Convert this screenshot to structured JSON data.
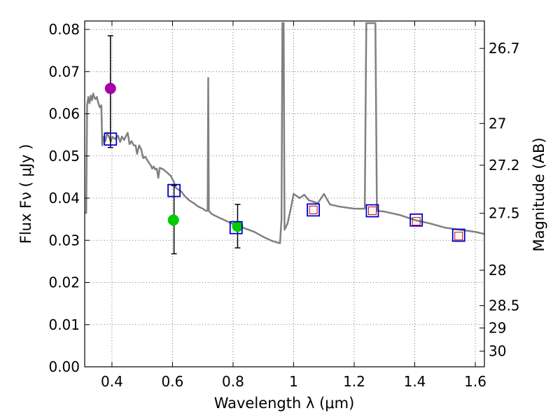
{
  "chart_data": {
    "type": "line",
    "xlabel": "Wavelength  λ (μm)",
    "ylabel": "Flux  Fν  ( μJy )",
    "y2label": "Magnitude (AB)",
    "xlim": [
      0.31,
      1.63
    ],
    "ylim": [
      0.0,
      0.082
    ],
    "grid": true,
    "grid_style": "dotted",
    "x_ticks": [
      0.4,
      0.6,
      0.8,
      1.0,
      1.2,
      1.4,
      1.6
    ],
    "x_tick_labels": [
      "0.4",
      "0.6",
      "0.8",
      "1",
      "1.2",
      "1.4",
      "1.6"
    ],
    "y_ticks": [
      0.0,
      0.01,
      0.02,
      0.03,
      0.04,
      0.05,
      0.06,
      0.07,
      0.08
    ],
    "y_tick_labels": [
      "0.00",
      "0.01",
      "0.02",
      "0.03",
      "0.04",
      "0.05",
      "0.06",
      "0.07",
      "0.08"
    ],
    "y2_ticks": [
      {
        "flux": 0.0755,
        "label": "26.7"
      },
      {
        "flux": 0.0577,
        "label": "27"
      },
      {
        "flux": 0.0478,
        "label": "27.2"
      },
      {
        "flux": 0.0364,
        "label": "27.5"
      },
      {
        "flux": 0.0229,
        "label": "28"
      },
      {
        "flux": 0.0145,
        "label": "28.5"
      },
      {
        "flux": 0.0092,
        "label": "29"
      },
      {
        "flux": 0.0037,
        "label": "30"
      }
    ],
    "series": [
      {
        "name": "model-spectrum",
        "style": "line",
        "color": "#808080",
        "points": [
          [
            0.31,
            0.0365
          ],
          [
            0.315,
            0.0365
          ],
          [
            0.318,
            0.062
          ],
          [
            0.322,
            0.064
          ],
          [
            0.326,
            0.0625
          ],
          [
            0.33,
            0.0643
          ],
          [
            0.334,
            0.0632
          ],
          [
            0.338,
            0.0648
          ],
          [
            0.342,
            0.0638
          ],
          [
            0.346,
            0.0635
          ],
          [
            0.35,
            0.064
          ],
          [
            0.355,
            0.0625
          ],
          [
            0.36,
            0.0615
          ],
          [
            0.365,
            0.062
          ],
          [
            0.368,
            0.0525
          ],
          [
            0.372,
            0.0545
          ],
          [
            0.378,
            0.0535
          ],
          [
            0.384,
            0.0555
          ],
          [
            0.39,
            0.0545
          ],
          [
            0.396,
            0.0535
          ],
          [
            0.402,
            0.0545
          ],
          [
            0.41,
            0.054
          ],
          [
            0.42,
            0.0548
          ],
          [
            0.427,
            0.0533
          ],
          [
            0.433,
            0.0546
          ],
          [
            0.44,
            0.0538
          ],
          [
            0.447,
            0.0548
          ],
          [
            0.452,
            0.0555
          ],
          [
            0.458,
            0.0528
          ],
          [
            0.465,
            0.0535
          ],
          [
            0.472,
            0.0525
          ],
          [
            0.478,
            0.0525
          ],
          [
            0.483,
            0.0505
          ],
          [
            0.49,
            0.0525
          ],
          [
            0.497,
            0.0515
          ],
          [
            0.503,
            0.0495
          ],
          [
            0.51,
            0.0498
          ],
          [
            0.517,
            0.049
          ],
          [
            0.522,
            0.0484
          ],
          [
            0.528,
            0.0478
          ],
          [
            0.533,
            0.047
          ],
          [
            0.538,
            0.0475
          ],
          [
            0.543,
            0.0468
          ],
          [
            0.548,
            0.047
          ],
          [
            0.553,
            0.0448
          ],
          [
            0.558,
            0.0472
          ],
          [
            0.564,
            0.047
          ],
          [
            0.57,
            0.0468
          ],
          [
            0.578,
            0.0463
          ],
          [
            0.586,
            0.0458
          ],
          [
            0.594,
            0.0453
          ],
          [
            0.6,
            0.0445
          ],
          [
            0.605,
            0.0438
          ],
          [
            0.61,
            0.0425
          ],
          [
            0.62,
            0.042
          ],
          [
            0.63,
            0.0415
          ],
          [
            0.64,
            0.0405
          ],
          [
            0.655,
            0.0395
          ],
          [
            0.67,
            0.0388
          ],
          [
            0.685,
            0.038
          ],
          [
            0.7,
            0.0375
          ],
          [
            0.71,
            0.037
          ],
          [
            0.716,
            0.037
          ],
          [
            0.718,
            0.0685
          ],
          [
            0.72,
            0.037
          ],
          [
            0.73,
            0.0362
          ],
          [
            0.75,
            0.0355
          ],
          [
            0.78,
            0.0345
          ],
          [
            0.81,
            0.0335
          ],
          [
            0.84,
            0.0328
          ],
          [
            0.87,
            0.032
          ],
          [
            0.9,
            0.0308
          ],
          [
            0.93,
            0.0298
          ],
          [
            0.955,
            0.0293
          ],
          [
            0.96,
            0.035
          ],
          [
            0.963,
            0.0815
          ],
          [
            0.967,
            0.0815
          ],
          [
            0.97,
            0.0325
          ],
          [
            0.98,
            0.034
          ],
          [
            0.992,
            0.038
          ],
          [
            1.0,
            0.041
          ],
          [
            1.01,
            0.0405
          ],
          [
            1.02,
            0.04
          ],
          [
            1.035,
            0.0408
          ],
          [
            1.05,
            0.0395
          ],
          [
            1.08,
            0.0388
          ],
          [
            1.1,
            0.041
          ],
          [
            1.12,
            0.0385
          ],
          [
            1.15,
            0.038
          ],
          [
            1.2,
            0.0375
          ],
          [
            1.235,
            0.0375
          ],
          [
            1.24,
            0.0815
          ],
          [
            1.27,
            0.0815
          ],
          [
            1.275,
            0.037
          ],
          [
            1.3,
            0.0368
          ],
          [
            1.35,
            0.036
          ],
          [
            1.4,
            0.0348
          ],
          [
            1.45,
            0.034
          ],
          [
            1.5,
            0.033
          ],
          [
            1.55,
            0.0325
          ],
          [
            1.6,
            0.032
          ],
          [
            1.63,
            0.0315
          ]
        ]
      },
      {
        "name": "observed-photometry-circles",
        "style": "circle",
        "points": [
          {
            "x": 0.395,
            "y": 0.066,
            "color": "#aa00aa"
          },
          {
            "x": 0.603,
            "y": 0.0348,
            "color": "#00cc00"
          },
          {
            "x": 0.815,
            "y": 0.0333,
            "color": "#00cc00"
          }
        ]
      },
      {
        "name": "model-photometry-open-squares",
        "style": "square",
        "color": "#0000cc",
        "points": [
          {
            "x": 0.395,
            "y": 0.054
          },
          {
            "x": 0.605,
            "y": 0.0418
          },
          {
            "x": 0.81,
            "y": 0.033
          },
          {
            "x": 1.065,
            "y": 0.0372
          },
          {
            "x": 1.26,
            "y": 0.037
          },
          {
            "x": 1.405,
            "y": 0.0348
          },
          {
            "x": 1.545,
            "y": 0.0312
          }
        ]
      },
      {
        "name": "nir-filter-inner-squares",
        "style": "square-small",
        "color": "#cc0000",
        "points": [
          {
            "x": 1.065,
            "y": 0.0372
          },
          {
            "x": 1.26,
            "y": 0.037
          },
          {
            "x": 1.405,
            "y": 0.0345
          },
          {
            "x": 1.545,
            "y": 0.031
          }
        ]
      },
      {
        "name": "flux-error-bars",
        "style": "errorbar",
        "color": "#000000",
        "points": [
          {
            "x": 0.395,
            "y_low": 0.052,
            "y_high": 0.0785
          },
          {
            "x": 0.605,
            "y_low": 0.0268,
            "y_high": 0.043
          },
          {
            "x": 0.815,
            "y_low": 0.0282,
            "y_high": 0.0385
          }
        ]
      }
    ]
  }
}
